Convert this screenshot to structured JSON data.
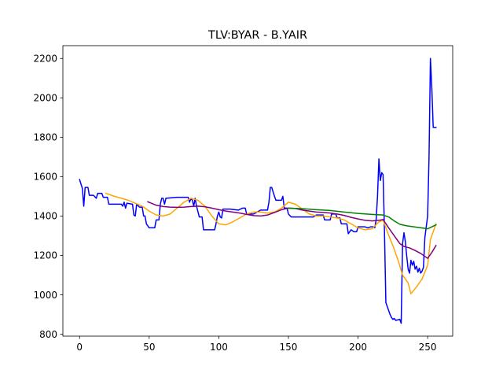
{
  "chart_data": {
    "type": "line",
    "title": "TLV:BYAR - B.YAIR",
    "xlabel": "",
    "ylabel": "",
    "xlim": [
      -12,
      268
    ],
    "ylim": [
      790,
      2265
    ],
    "x_ticks": [
      0,
      50,
      100,
      150,
      200,
      250
    ],
    "x_tick_labels": [
      "0",
      "50",
      "100",
      "150",
      "200",
      "250"
    ],
    "y_ticks": [
      800,
      1000,
      1200,
      1400,
      1600,
      1800,
      2000,
      2200
    ],
    "y_tick_labels": [
      "800",
      "1000",
      "1200",
      "1400",
      "1600",
      "1800",
      "2000",
      "2200"
    ],
    "grid": false,
    "legend": "none",
    "colors": {
      "price": "#0000ff",
      "ma_short": "#ffa500",
      "ma_medium": "#800080",
      "ma_long": "#008000",
      "axis": "#000000",
      "background": "#ffffff"
    },
    "series": [
      {
        "color": "#0000ff",
        "points": [
          [
            0,
            1585
          ],
          [
            2,
            1540
          ],
          [
            3,
            1450
          ],
          [
            4,
            1545
          ],
          [
            6,
            1545
          ],
          [
            7,
            1505
          ],
          [
            10,
            1505
          ],
          [
            12,
            1490
          ],
          [
            13,
            1515
          ],
          [
            16,
            1515
          ],
          [
            17,
            1495
          ],
          [
            20,
            1495
          ],
          [
            21,
            1460
          ],
          [
            30,
            1460
          ],
          [
            31,
            1450
          ],
          [
            32,
            1470
          ],
          [
            33,
            1440
          ],
          [
            34,
            1465
          ],
          [
            38,
            1460
          ],
          [
            39,
            1405
          ],
          [
            40,
            1400
          ],
          [
            41,
            1460
          ],
          [
            43,
            1445
          ],
          [
            45,
            1445
          ],
          [
            46,
            1400
          ],
          [
            47,
            1400
          ],
          [
            48,
            1360
          ],
          [
            50,
            1340
          ],
          [
            54,
            1340
          ],
          [
            55,
            1380
          ],
          [
            57,
            1380
          ],
          [
            58,
            1460
          ],
          [
            59,
            1490
          ],
          [
            60,
            1490
          ],
          [
            61,
            1460
          ],
          [
            62,
            1490
          ],
          [
            70,
            1495
          ],
          [
            78,
            1495
          ],
          [
            79,
            1470
          ],
          [
            80,
            1490
          ],
          [
            81,
            1480
          ],
          [
            82,
            1450
          ],
          [
            83,
            1490
          ],
          [
            84,
            1450
          ],
          [
            86,
            1395
          ],
          [
            88,
            1395
          ],
          [
            89,
            1330
          ],
          [
            97,
            1330
          ],
          [
            98,
            1360
          ],
          [
            99,
            1400
          ],
          [
            100,
            1420
          ],
          [
            101,
            1395
          ],
          [
            102,
            1390
          ],
          [
            103,
            1435
          ],
          [
            108,
            1435
          ],
          [
            114,
            1430
          ],
          [
            117,
            1440
          ],
          [
            119,
            1440
          ],
          [
            120,
            1410
          ],
          [
            125,
            1410
          ],
          [
            130,
            1430
          ],
          [
            135,
            1430
          ],
          [
            136,
            1470
          ],
          [
            137,
            1545
          ],
          [
            138,
            1545
          ],
          [
            140,
            1500
          ],
          [
            141,
            1480
          ],
          [
            145,
            1480
          ],
          [
            146,
            1500
          ],
          [
            147,
            1440
          ],
          [
            149,
            1440
          ],
          [
            150,
            1410
          ],
          [
            152,
            1395
          ],
          [
            168,
            1395
          ],
          [
            170,
            1405
          ],
          [
            175,
            1405
          ],
          [
            176,
            1380
          ],
          [
            180,
            1380
          ],
          [
            181,
            1410
          ],
          [
            184,
            1410
          ],
          [
            185,
            1390
          ],
          [
            187,
            1390
          ],
          [
            188,
            1360
          ],
          [
            192,
            1360
          ],
          [
            193,
            1310
          ],
          [
            195,
            1330
          ],
          [
            197,
            1320
          ],
          [
            199,
            1320
          ],
          [
            200,
            1345
          ],
          [
            205,
            1345
          ],
          [
            207,
            1340
          ],
          [
            209,
            1345
          ],
          [
            211,
            1345
          ],
          [
            212,
            1340
          ],
          [
            213,
            1380
          ],
          [
            214,
            1500
          ],
          [
            215,
            1690
          ],
          [
            216,
            1580
          ],
          [
            217,
            1620
          ],
          [
            218,
            1610
          ],
          [
            219,
            1320
          ],
          [
            220,
            960
          ],
          [
            221,
            940
          ],
          [
            223,
            900
          ],
          [
            224,
            885
          ],
          [
            225,
            875
          ],
          [
            226,
            880
          ],
          [
            227,
            870
          ],
          [
            230,
            875
          ],
          [
            231,
            855
          ],
          [
            232,
            1260
          ],
          [
            233,
            1315
          ],
          [
            234,
            1270
          ],
          [
            235,
            1195
          ],
          [
            236,
            1130
          ],
          [
            237,
            1110
          ],
          [
            238,
            1175
          ],
          [
            239,
            1150
          ],
          [
            240,
            1170
          ],
          [
            241,
            1130
          ],
          [
            242,
            1145
          ],
          [
            243,
            1115
          ],
          [
            244,
            1135
          ],
          [
            245,
            1110
          ],
          [
            246,
            1120
          ],
          [
            247,
            1140
          ],
          [
            248,
            1290
          ],
          [
            249,
            1345
          ],
          [
            250,
            1400
          ],
          [
            251,
            1700
          ],
          [
            252,
            2200
          ],
          [
            253,
            2050
          ],
          [
            254,
            1850
          ],
          [
            256,
            1850
          ]
        ]
      },
      {
        "color": "#ffa500",
        "points": [
          [
            19,
            1515
          ],
          [
            25,
            1500
          ],
          [
            30,
            1490
          ],
          [
            35,
            1480
          ],
          [
            40,
            1465
          ],
          [
            45,
            1450
          ],
          [
            50,
            1425
          ],
          [
            55,
            1405
          ],
          [
            60,
            1400
          ],
          [
            65,
            1410
          ],
          [
            70,
            1440
          ],
          [
            75,
            1470
          ],
          [
            80,
            1490
          ],
          [
            85,
            1480
          ],
          [
            90,
            1450
          ],
          [
            95,
            1400
          ],
          [
            100,
            1360
          ],
          [
            105,
            1355
          ],
          [
            110,
            1370
          ],
          [
            115,
            1390
          ],
          [
            120,
            1410
          ],
          [
            125,
            1420
          ],
          [
            130,
            1420
          ],
          [
            135,
            1415
          ],
          [
            140,
            1420
          ],
          [
            145,
            1440
          ],
          [
            150,
            1470
          ],
          [
            155,
            1460
          ],
          [
            160,
            1435
          ],
          [
            165,
            1410
          ],
          [
            170,
            1400
          ],
          [
            175,
            1400
          ],
          [
            180,
            1395
          ],
          [
            185,
            1390
          ],
          [
            190,
            1380
          ],
          [
            195,
            1360
          ],
          [
            200,
            1340
          ],
          [
            205,
            1330
          ],
          [
            210,
            1335
          ],
          [
            215,
            1370
          ],
          [
            218,
            1380
          ],
          [
            221,
            1320
          ],
          [
            225,
            1250
          ],
          [
            229,
            1170
          ],
          [
            232,
            1100
          ],
          [
            236,
            1060
          ],
          [
            238,
            1005
          ],
          [
            242,
            1040
          ],
          [
            246,
            1080
          ],
          [
            250,
            1150
          ],
          [
            252,
            1280
          ],
          [
            254,
            1320
          ],
          [
            256,
            1360
          ]
        ]
      },
      {
        "color": "#800080",
        "points": [
          [
            49,
            1472
          ],
          [
            55,
            1455
          ],
          [
            60,
            1448
          ],
          [
            65,
            1445
          ],
          [
            70,
            1444
          ],
          [
            75,
            1445
          ],
          [
            80,
            1448
          ],
          [
            85,
            1450
          ],
          [
            90,
            1447
          ],
          [
            95,
            1440
          ],
          [
            100,
            1432
          ],
          [
            105,
            1425
          ],
          [
            110,
            1420
          ],
          [
            115,
            1415
          ],
          [
            120,
            1408
          ],
          [
            125,
            1402
          ],
          [
            130,
            1400
          ],
          [
            135,
            1405
          ],
          [
            140,
            1418
          ],
          [
            145,
            1432
          ],
          [
            150,
            1440
          ],
          [
            155,
            1438
          ],
          [
            160,
            1430
          ],
          [
            165,
            1425
          ],
          [
            170,
            1420
          ],
          [
            175,
            1418
          ],
          [
            180,
            1415
          ],
          [
            185,
            1410
          ],
          [
            190,
            1403
          ],
          [
            195,
            1393
          ],
          [
            200,
            1385
          ],
          [
            205,
            1378
          ],
          [
            210,
            1375
          ],
          [
            215,
            1378
          ],
          [
            218,
            1382
          ],
          [
            222,
            1340
          ],
          [
            226,
            1300
          ],
          [
            230,
            1260
          ],
          [
            233,
            1245
          ],
          [
            237,
            1238
          ],
          [
            241,
            1225
          ],
          [
            245,
            1210
          ],
          [
            250,
            1185
          ],
          [
            253,
            1215
          ],
          [
            256,
            1250
          ]
        ]
      },
      {
        "color": "#008000",
        "points": [
          [
            150,
            1440
          ],
          [
            160,
            1437
          ],
          [
            170,
            1432
          ],
          [
            180,
            1428
          ],
          [
            190,
            1420
          ],
          [
            200,
            1413
          ],
          [
            210,
            1408
          ],
          [
            218,
            1405
          ],
          [
            222,
            1395
          ],
          [
            226,
            1375
          ],
          [
            230,
            1358
          ],
          [
            235,
            1350
          ],
          [
            240,
            1345
          ],
          [
            245,
            1340
          ],
          [
            250,
            1335
          ],
          [
            253,
            1345
          ],
          [
            256,
            1355
          ]
        ]
      }
    ]
  }
}
